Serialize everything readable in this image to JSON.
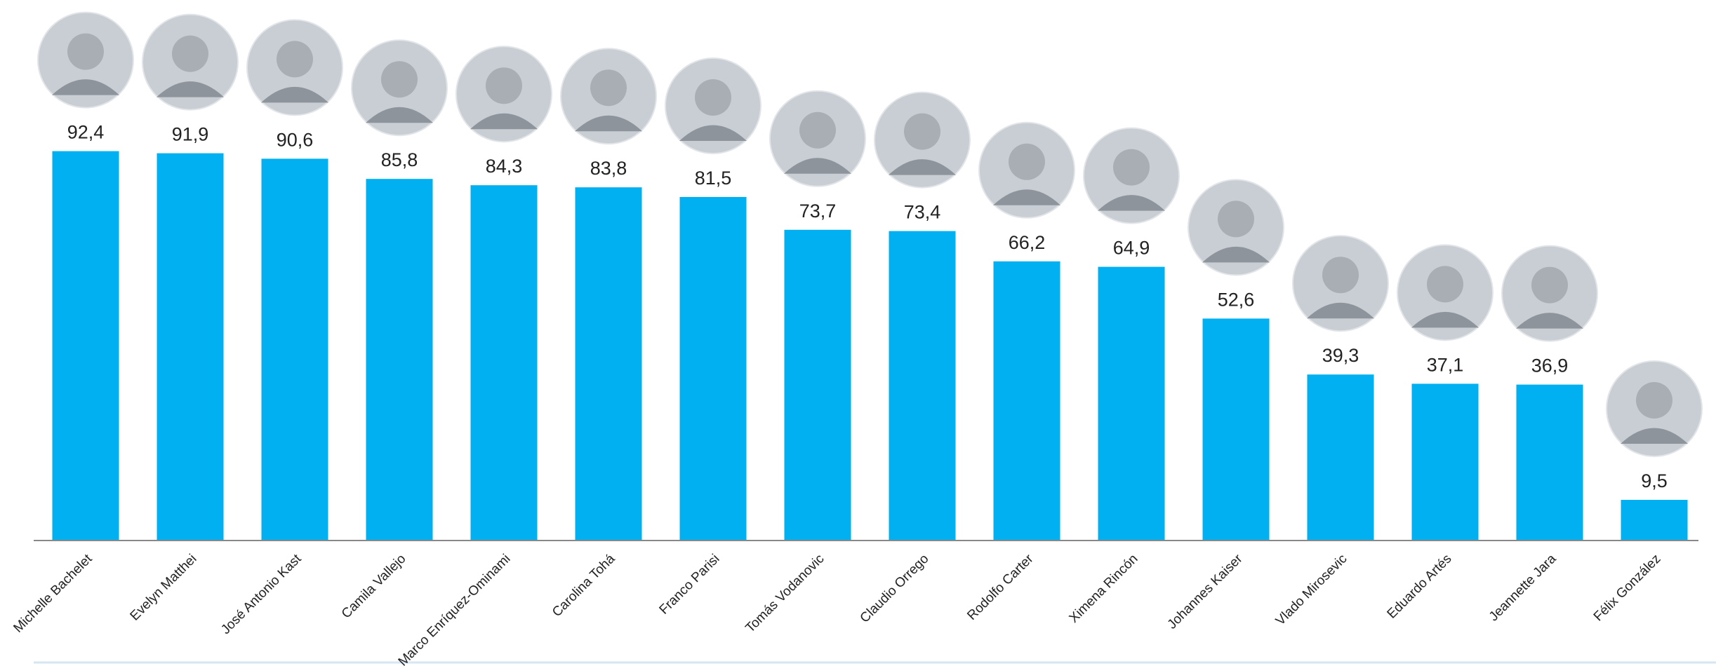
{
  "chart_data": {
    "type": "bar",
    "categories": [
      "Michelle Bachelet",
      "Evelyn Matthei",
      "José Antonio Kast",
      "Camila Vallejo",
      "Marco Enríquez-Ominami",
      "Carolina Tohá",
      "Franco Parisi",
      "Tomás Vodanovic",
      "Claudio Orrego",
      "Rodolfo Carter",
      "Ximena Rincón",
      "Johannes Kaiser",
      "Vlado Mirosevic",
      "Eduardo Artés",
      "Jeannette Jara",
      "Félix González"
    ],
    "values": [
      92.4,
      91.9,
      90.6,
      85.8,
      84.3,
      83.8,
      81.5,
      73.7,
      73.4,
      66.2,
      64.9,
      52.6,
      39.3,
      37.1,
      36.9,
      9.5
    ],
    "value_labels": [
      "92,4",
      "91,9",
      "90,6",
      "85,8",
      "84,3",
      "83,8",
      "81,5",
      "73,7",
      "73,4",
      "66,2",
      "64,9",
      "52,6",
      "39,3",
      "37,1",
      "36,9",
      "9,5"
    ],
    "color": "#00b0f0"
  }
}
